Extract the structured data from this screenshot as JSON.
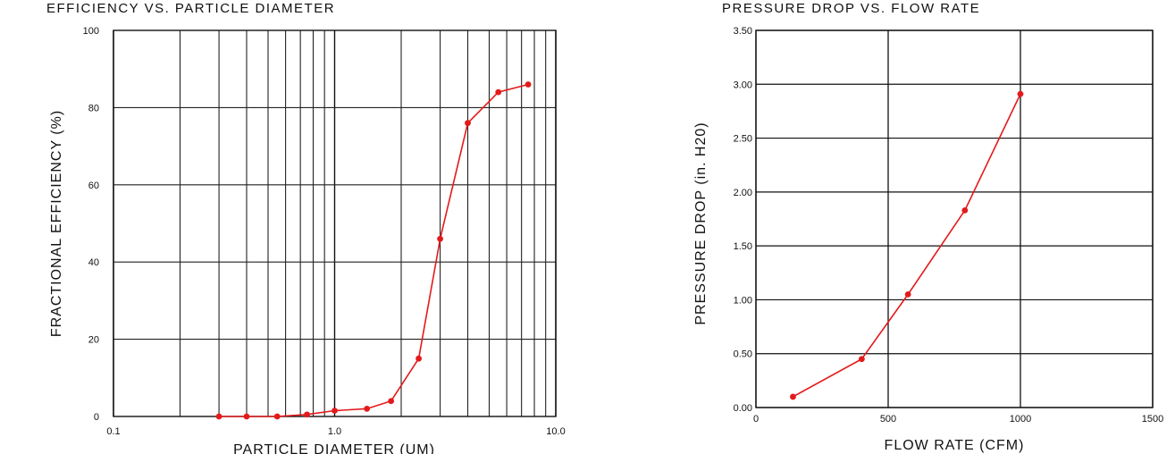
{
  "chart_data": [
    {
      "type": "line",
      "title": "EFFICIENCY VS. PARTICLE DIAMETER",
      "xlabel": "PARTICLE DIAMETER (UM)",
      "ylabel": "FRACTIONAL EFFICIENCY (%)",
      "x_scale": "log",
      "xlim": [
        0.1,
        10.0
      ],
      "ylim": [
        0,
        100
      ],
      "x_ticks": [
        0.1,
        1.0,
        10.0
      ],
      "x_tick_labels": [
        "0.1",
        "1.0",
        "10.0"
      ],
      "y_ticks": [
        0,
        20,
        40,
        60,
        80,
        100
      ],
      "y_tick_labels": [
        "0",
        "20",
        "40",
        "60",
        "80",
        "100"
      ],
      "grid": true,
      "line_color": "#e31a1c",
      "series": [
        {
          "x": [
            0.3,
            0.4,
            0.55,
            0.75,
            1.0,
            1.4,
            1.8,
            2.4,
            3.0,
            4.0,
            5.5,
            7.5
          ],
          "y": [
            0,
            0,
            0,
            0.5,
            1.5,
            2,
            4,
            15,
            46,
            76,
            84,
            86
          ]
        }
      ]
    },
    {
      "type": "line",
      "title": "PRESSURE DROP VS. FLOW RATE",
      "xlabel": "FLOW RATE (CFM)",
      "ylabel": "PRESSURE DROP (in. H20)",
      "xlim": [
        0,
        1500
      ],
      "ylim": [
        0,
        3.5
      ],
      "x_ticks": [
        0,
        500,
        1000,
        1500
      ],
      "x_tick_labels": [
        "0",
        "500",
        "1000",
        "1500"
      ],
      "y_ticks": [
        0,
        0.5,
        1.0,
        1.5,
        2.0,
        2.5,
        3.0,
        3.5
      ],
      "y_tick_labels": [
        "0.00",
        "0.50",
        "1.00",
        "1.50",
        "2.00",
        "2.50",
        "3.00",
        "3.50"
      ],
      "grid": true,
      "line_color": "#e31a1c",
      "series": [
        {
          "x": [
            140,
            400,
            575,
            790,
            1000
          ],
          "y": [
            0.1,
            0.45,
            1.05,
            1.83,
            2.91
          ]
        }
      ]
    }
  ]
}
